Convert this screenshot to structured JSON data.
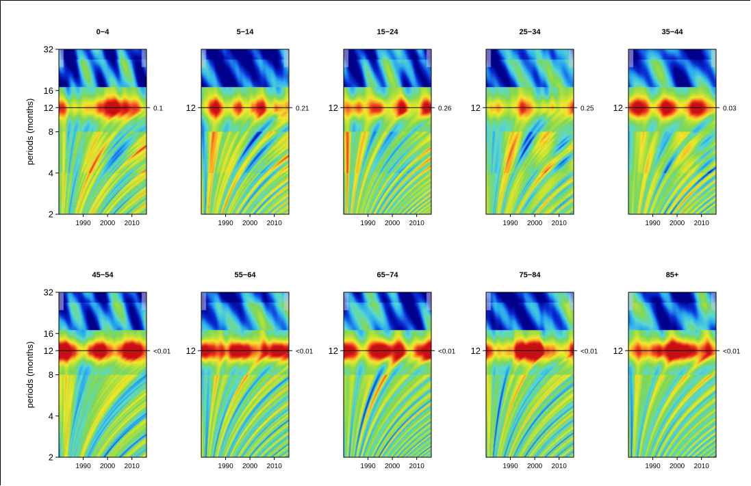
{
  "chart_data": {
    "type": "heatmap",
    "description_of_values": "wavelet power",
    "xlim": [
      1980,
      2016
    ],
    "x_ticks": [
      "1990",
      "2000",
      "2010"
    ],
    "x_tick_values": [
      1990,
      2000,
      2010
    ],
    "ylim": [
      2,
      32
    ],
    "y_scale": "log2",
    "y_ticks_full": [
      "2",
      "4",
      "8",
      "12",
      "16",
      "32"
    ],
    "y_tick_values_full": [
      2,
      4,
      8,
      12,
      16,
      32
    ],
    "y_ticks_inner": [
      "12"
    ],
    "ylabel": "periods (months)",
    "reference_period": 12,
    "colormap": [
      "#00008b",
      "#0a2fd6",
      "#28a8f0",
      "#5bd8d0",
      "#7cd75a",
      "#b9e23a",
      "#f2e82a",
      "#f9a22a",
      "#ee3a1f",
      "#c80f14"
    ],
    "panels": [
      {
        "title": "0−4",
        "pvalue": "0.1",
        "band_strength": 0.72
      },
      {
        "title": "5−14",
        "pvalue": "0.21",
        "band_strength": 0.6
      },
      {
        "title": "15−24",
        "pvalue": "0.26",
        "band_strength": 0.62
      },
      {
        "title": "25−34",
        "pvalue": "0.25",
        "band_strength": 0.38
      },
      {
        "title": "35−44",
        "pvalue": "0.03",
        "band_strength": 0.8
      },
      {
        "title": "45−54",
        "pvalue": "<0.01",
        "band_strength": 1.0
      },
      {
        "title": "55−64",
        "pvalue": "<0.01",
        "band_strength": 1.0
      },
      {
        "title": "65−74",
        "pvalue": "<0.01",
        "band_strength": 1.0
      },
      {
        "title": "75−84",
        "pvalue": "<0.01",
        "band_strength": 0.98
      },
      {
        "title": "85+",
        "pvalue": "<0.01",
        "band_strength": 0.98
      }
    ]
  }
}
